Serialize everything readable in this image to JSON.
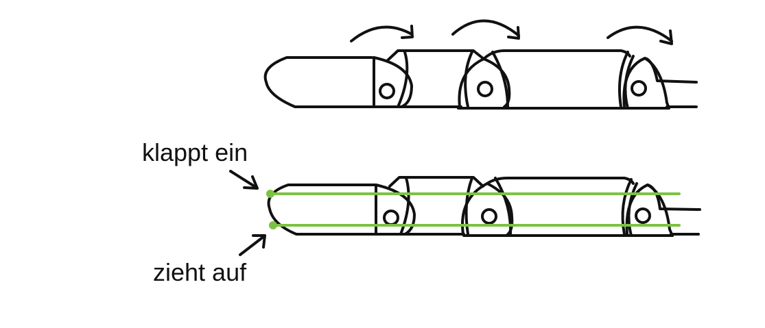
{
  "labels": {
    "upper": "klappt ein",
    "lower": "zieht auf"
  },
  "colors": {
    "ink": "#111111",
    "tendon": "#7cc242",
    "background": "#ffffff"
  }
}
